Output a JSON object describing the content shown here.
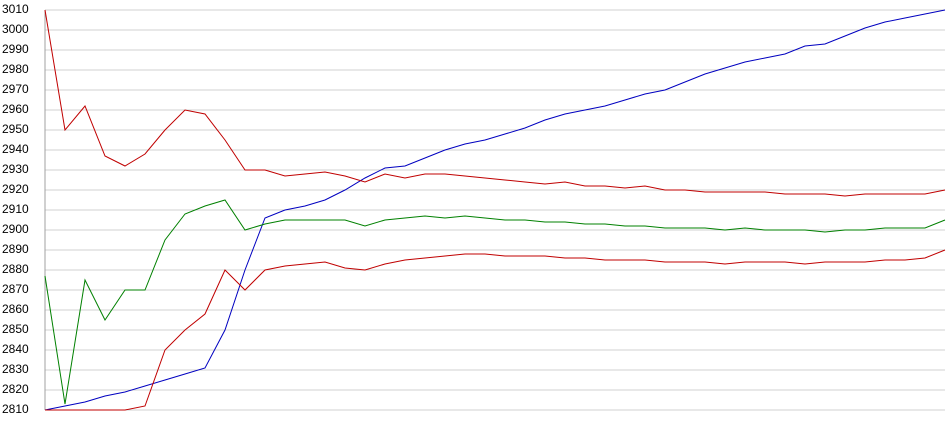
{
  "chart_data": {
    "type": "line",
    "ylim": [
      2810,
      3010
    ],
    "yticks": [
      2810,
      2820,
      2830,
      2840,
      2850,
      2860,
      2870,
      2880,
      2890,
      2900,
      2910,
      2920,
      2930,
      2940,
      2950,
      2960,
      2970,
      2980,
      2990,
      3000,
      3010
    ],
    "grid": true,
    "series": [
      {
        "color": "#0000c0",
        "values": [
          2810,
          2812,
          2814,
          2817,
          2819,
          2822,
          2825,
          2828,
          2831,
          2850,
          2880,
          2906,
          2910,
          2912,
          2915,
          2920,
          2926,
          2931,
          2932,
          2936,
          2940,
          2943,
          2945,
          2948,
          2951,
          2955,
          2958,
          2960,
          2962,
          2965,
          2968,
          2970,
          2974,
          2978,
          2981,
          2984,
          2986,
          2988,
          2992,
          2993,
          2997,
          3001,
          3004,
          3006,
          3008,
          3010
        ]
      },
      {
        "color": "#c00000",
        "values": [
          3010,
          2950,
          2962,
          2937,
          2932,
          2938,
          2950,
          2960,
          2958,
          2945,
          2930,
          2930,
          2927,
          2928,
          2929,
          2927,
          2924,
          2928,
          2926,
          2928,
          2928,
          2927,
          2926,
          2925,
          2924,
          2923,
          2924,
          2922,
          2922,
          2921,
          2922,
          2920,
          2920,
          2919,
          2919,
          2919,
          2919,
          2918,
          2918,
          2918,
          2917,
          2918,
          2918,
          2918,
          2918,
          2920
        ]
      },
      {
        "color": "#008000",
        "values": [
          2877,
          2813,
          2875,
          2855,
          2870,
          2870,
          2895,
          2908,
          2912,
          2915,
          2900,
          2903,
          2905,
          2905,
          2905,
          2905,
          2902,
          2905,
          2906,
          2907,
          2906,
          2907,
          2906,
          2905,
          2905,
          2904,
          2904,
          2903,
          2903,
          2902,
          2902,
          2901,
          2901,
          2901,
          2900,
          2901,
          2900,
          2900,
          2900,
          2899,
          2900,
          2900,
          2901,
          2901,
          2901,
          2905
        ]
      },
      {
        "color": "#c00000",
        "values": [
          2810,
          2810,
          2810,
          2810,
          2810,
          2812,
          2840,
          2850,
          2858,
          2880,
          2870,
          2880,
          2882,
          2883,
          2884,
          2881,
          2880,
          2883,
          2885,
          2886,
          2887,
          2888,
          2888,
          2887,
          2887,
          2887,
          2886,
          2886,
          2885,
          2885,
          2885,
          2884,
          2884,
          2884,
          2883,
          2884,
          2884,
          2884,
          2883,
          2884,
          2884,
          2884,
          2885,
          2885,
          2886,
          2890
        ]
      }
    ]
  }
}
